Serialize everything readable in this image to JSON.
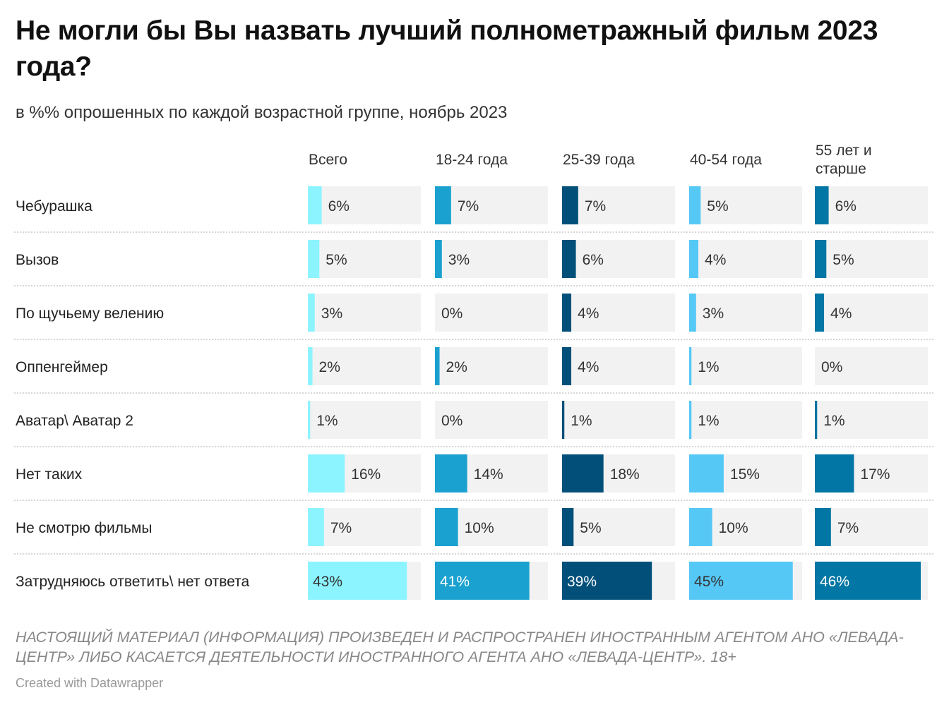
{
  "chart_data": {
    "type": "bar",
    "title": "Не могли бы Вы назвать лучший полнометражный фильм 2023 года?",
    "subtitle": "в %% опрошенных по каждой возрастной группе, ноябрь 2023",
    "categories": [
      "Чебурашка",
      "Вызов",
      "По щучьему велению",
      "Оппенгеймер",
      "Аватар\\ Аватар 2",
      "Нет таких",
      "Не смотрю фильмы",
      "Затрудняюсь ответить\\ нет ответа"
    ],
    "series": [
      {
        "name": "Всего",
        "name_lines": [
          "Всего"
        ],
        "color": "#8cf4ff",
        "values": [
          6,
          5,
          3,
          2,
          1,
          16,
          7,
          43
        ]
      },
      {
        "name": "18-24 года",
        "name_lines": [
          "18-24 года"
        ],
        "color": "#1aa1cf",
        "values": [
          7,
          3,
          0,
          2,
          0,
          14,
          10,
          41
        ]
      },
      {
        "name": "25-39 года",
        "name_lines": [
          "25-39 года"
        ],
        "color": "#02507a",
        "values": [
          7,
          6,
          4,
          4,
          1,
          18,
          5,
          39
        ]
      },
      {
        "name": "40-54 года",
        "name_lines": [
          "40-54 года"
        ],
        "color": "#55c8f6",
        "values": [
          5,
          4,
          3,
          1,
          1,
          15,
          10,
          45
        ]
      },
      {
        "name": "55 лет и старше",
        "name_lines": [
          "55 лет и",
          "старше"
        ],
        "color": "#0276a4",
        "values": [
          6,
          5,
          4,
          0,
          1,
          17,
          7,
          46
        ]
      }
    ],
    "value_suffix": "%",
    "xlim": [
      0,
      46
    ],
    "background_bar_color": "#f2f2f2"
  },
  "footer": {
    "notice": "НАСТОЯЩИЙ МАТЕРИАЛ (ИНФОРМАЦИЯ) ПРОИЗВЕДЕН И РАСПРОСТРАНЕН ИНОСТРАННЫМ АГЕНТОМ АНО «ЛЕВАДА-ЦЕНТР» ЛИБО КАСАЕТСЯ ДЕЯТЕЛЬНОСТИ ИНОСТРАННОГО АГЕНТА АНО «ЛЕВАДА-ЦЕНТР». 18+",
    "credit": "Created with Datawrapper"
  }
}
